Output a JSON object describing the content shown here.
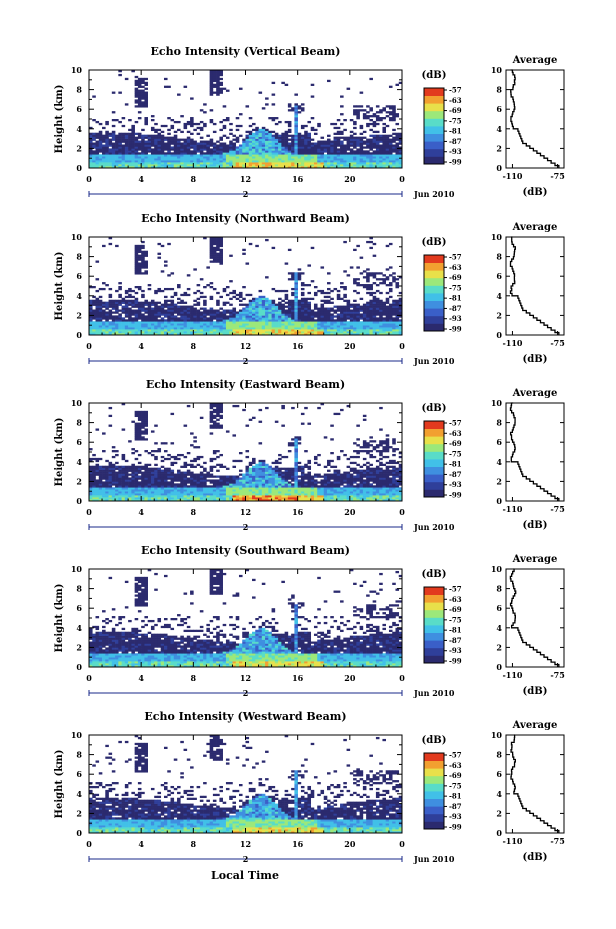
{
  "figure": {
    "x_axis_title": "Local Time",
    "y_axis_title": "Height (km)",
    "date_label": "Jun 2010",
    "day_marker": "2",
    "average_title": "Average",
    "average_xlabel": "(dB)",
    "colorbar_unit": "(dB)",
    "colors": {
      "colormap": [
        "#2b2a6e",
        "#2f3f9a",
        "#3a5fc8",
        "#3f8fe0",
        "#41c0e8",
        "#59dcc8",
        "#9ce87a",
        "#e8e04a",
        "#f2a030",
        "#e23a1e"
      ],
      "line": "#000000",
      "background": "#ffffff"
    }
  },
  "chart_data": [
    {
      "type": "heatmap",
      "title": "Echo Intensity (Vertical Beam)",
      "xlabel": "",
      "ylabel": "Height (km)",
      "x_ticks": [
        "0",
        "4",
        "8",
        "12",
        "16",
        "20",
        "0"
      ],
      "y_ticks": [
        "0",
        "2",
        "4",
        "6",
        "8",
        "10"
      ],
      "xlim": [
        0,
        24
      ],
      "ylim": [
        0,
        10
      ],
      "colorbar_ticks": [
        "-57",
        "-63",
        "-69",
        "-75",
        "-81",
        "-87",
        "-93",
        "-99"
      ],
      "profile": {
        "title": "Average",
        "xlabel": "(dB)",
        "x_ticks": [
          "-110",
          "-75"
        ],
        "xlim": [
          -115,
          -70
        ],
        "y_ticks": [
          "0",
          "2",
          "4",
          "6",
          "8",
          "10"
        ]
      }
    },
    {
      "type": "heatmap",
      "title": "Echo Intensity (Northward Beam)",
      "xlabel": "",
      "ylabel": "Height (km)",
      "x_ticks": [
        "0",
        "4",
        "8",
        "12",
        "16",
        "20",
        "0"
      ],
      "y_ticks": [
        "0",
        "2",
        "4",
        "6",
        "8",
        "10"
      ],
      "xlim": [
        0,
        24
      ],
      "ylim": [
        0,
        10
      ],
      "colorbar_ticks": [
        "-57",
        "-63",
        "-69",
        "-75",
        "-81",
        "-87",
        "-93",
        "-99"
      ],
      "profile": {
        "title": "Average",
        "xlabel": "(dB)",
        "x_ticks": [
          "-110",
          "-75"
        ],
        "xlim": [
          -115,
          -70
        ],
        "y_ticks": [
          "0",
          "2",
          "4",
          "6",
          "8",
          "10"
        ]
      }
    },
    {
      "type": "heatmap",
      "title": "Echo Intensity (Eastward Beam)",
      "xlabel": "",
      "ylabel": "Height (km)",
      "x_ticks": [
        "0",
        "4",
        "8",
        "12",
        "16",
        "20",
        "0"
      ],
      "y_ticks": [
        "0",
        "2",
        "4",
        "6",
        "8",
        "10"
      ],
      "xlim": [
        0,
        24
      ],
      "ylim": [
        0,
        10
      ],
      "colorbar_ticks": [
        "-57",
        "-63",
        "-69",
        "-75",
        "-81",
        "-87",
        "-93",
        "-99"
      ],
      "profile": {
        "title": "Average",
        "xlabel": "(dB)",
        "x_ticks": [
          "-110",
          "-75"
        ],
        "xlim": [
          -115,
          -70
        ],
        "y_ticks": [
          "0",
          "2",
          "4",
          "6",
          "8",
          "10"
        ]
      }
    },
    {
      "type": "heatmap",
      "title": "Echo Intensity (Southward Beam)",
      "xlabel": "",
      "ylabel": "Height (km)",
      "x_ticks": [
        "0",
        "4",
        "8",
        "12",
        "16",
        "20",
        "0"
      ],
      "y_ticks": [
        "0",
        "2",
        "4",
        "6",
        "8",
        "10"
      ],
      "xlim": [
        0,
        24
      ],
      "ylim": [
        0,
        10
      ],
      "colorbar_ticks": [
        "-57",
        "-63",
        "-69",
        "-75",
        "-81",
        "-87",
        "-93",
        "-99"
      ],
      "profile": {
        "title": "Average",
        "xlabel": "(dB)",
        "x_ticks": [
          "-110",
          "-75"
        ],
        "xlim": [
          -115,
          -70
        ],
        "y_ticks": [
          "0",
          "2",
          "4",
          "6",
          "8",
          "10"
        ]
      }
    },
    {
      "type": "heatmap",
      "title": "Echo Intensity (Westward Beam)",
      "xlabel": "Local Time",
      "ylabel": "Height (km)",
      "x_ticks": [
        "0",
        "4",
        "8",
        "12",
        "16",
        "20",
        "0"
      ],
      "y_ticks": [
        "0",
        "2",
        "4",
        "6",
        "8",
        "10"
      ],
      "xlim": [
        0,
        24
      ],
      "ylim": [
        0,
        10
      ],
      "colorbar_ticks": [
        "-57",
        "-63",
        "-69",
        "-75",
        "-81",
        "-87",
        "-93",
        "-99"
      ],
      "profile": {
        "title": "Average",
        "xlabel": "(dB)",
        "x_ticks": [
          "-110",
          "-75"
        ],
        "xlim": [
          -115,
          -70
        ],
        "y_ticks": [
          "0",
          "2",
          "4",
          "6",
          "8",
          "10"
        ]
      }
    }
  ]
}
